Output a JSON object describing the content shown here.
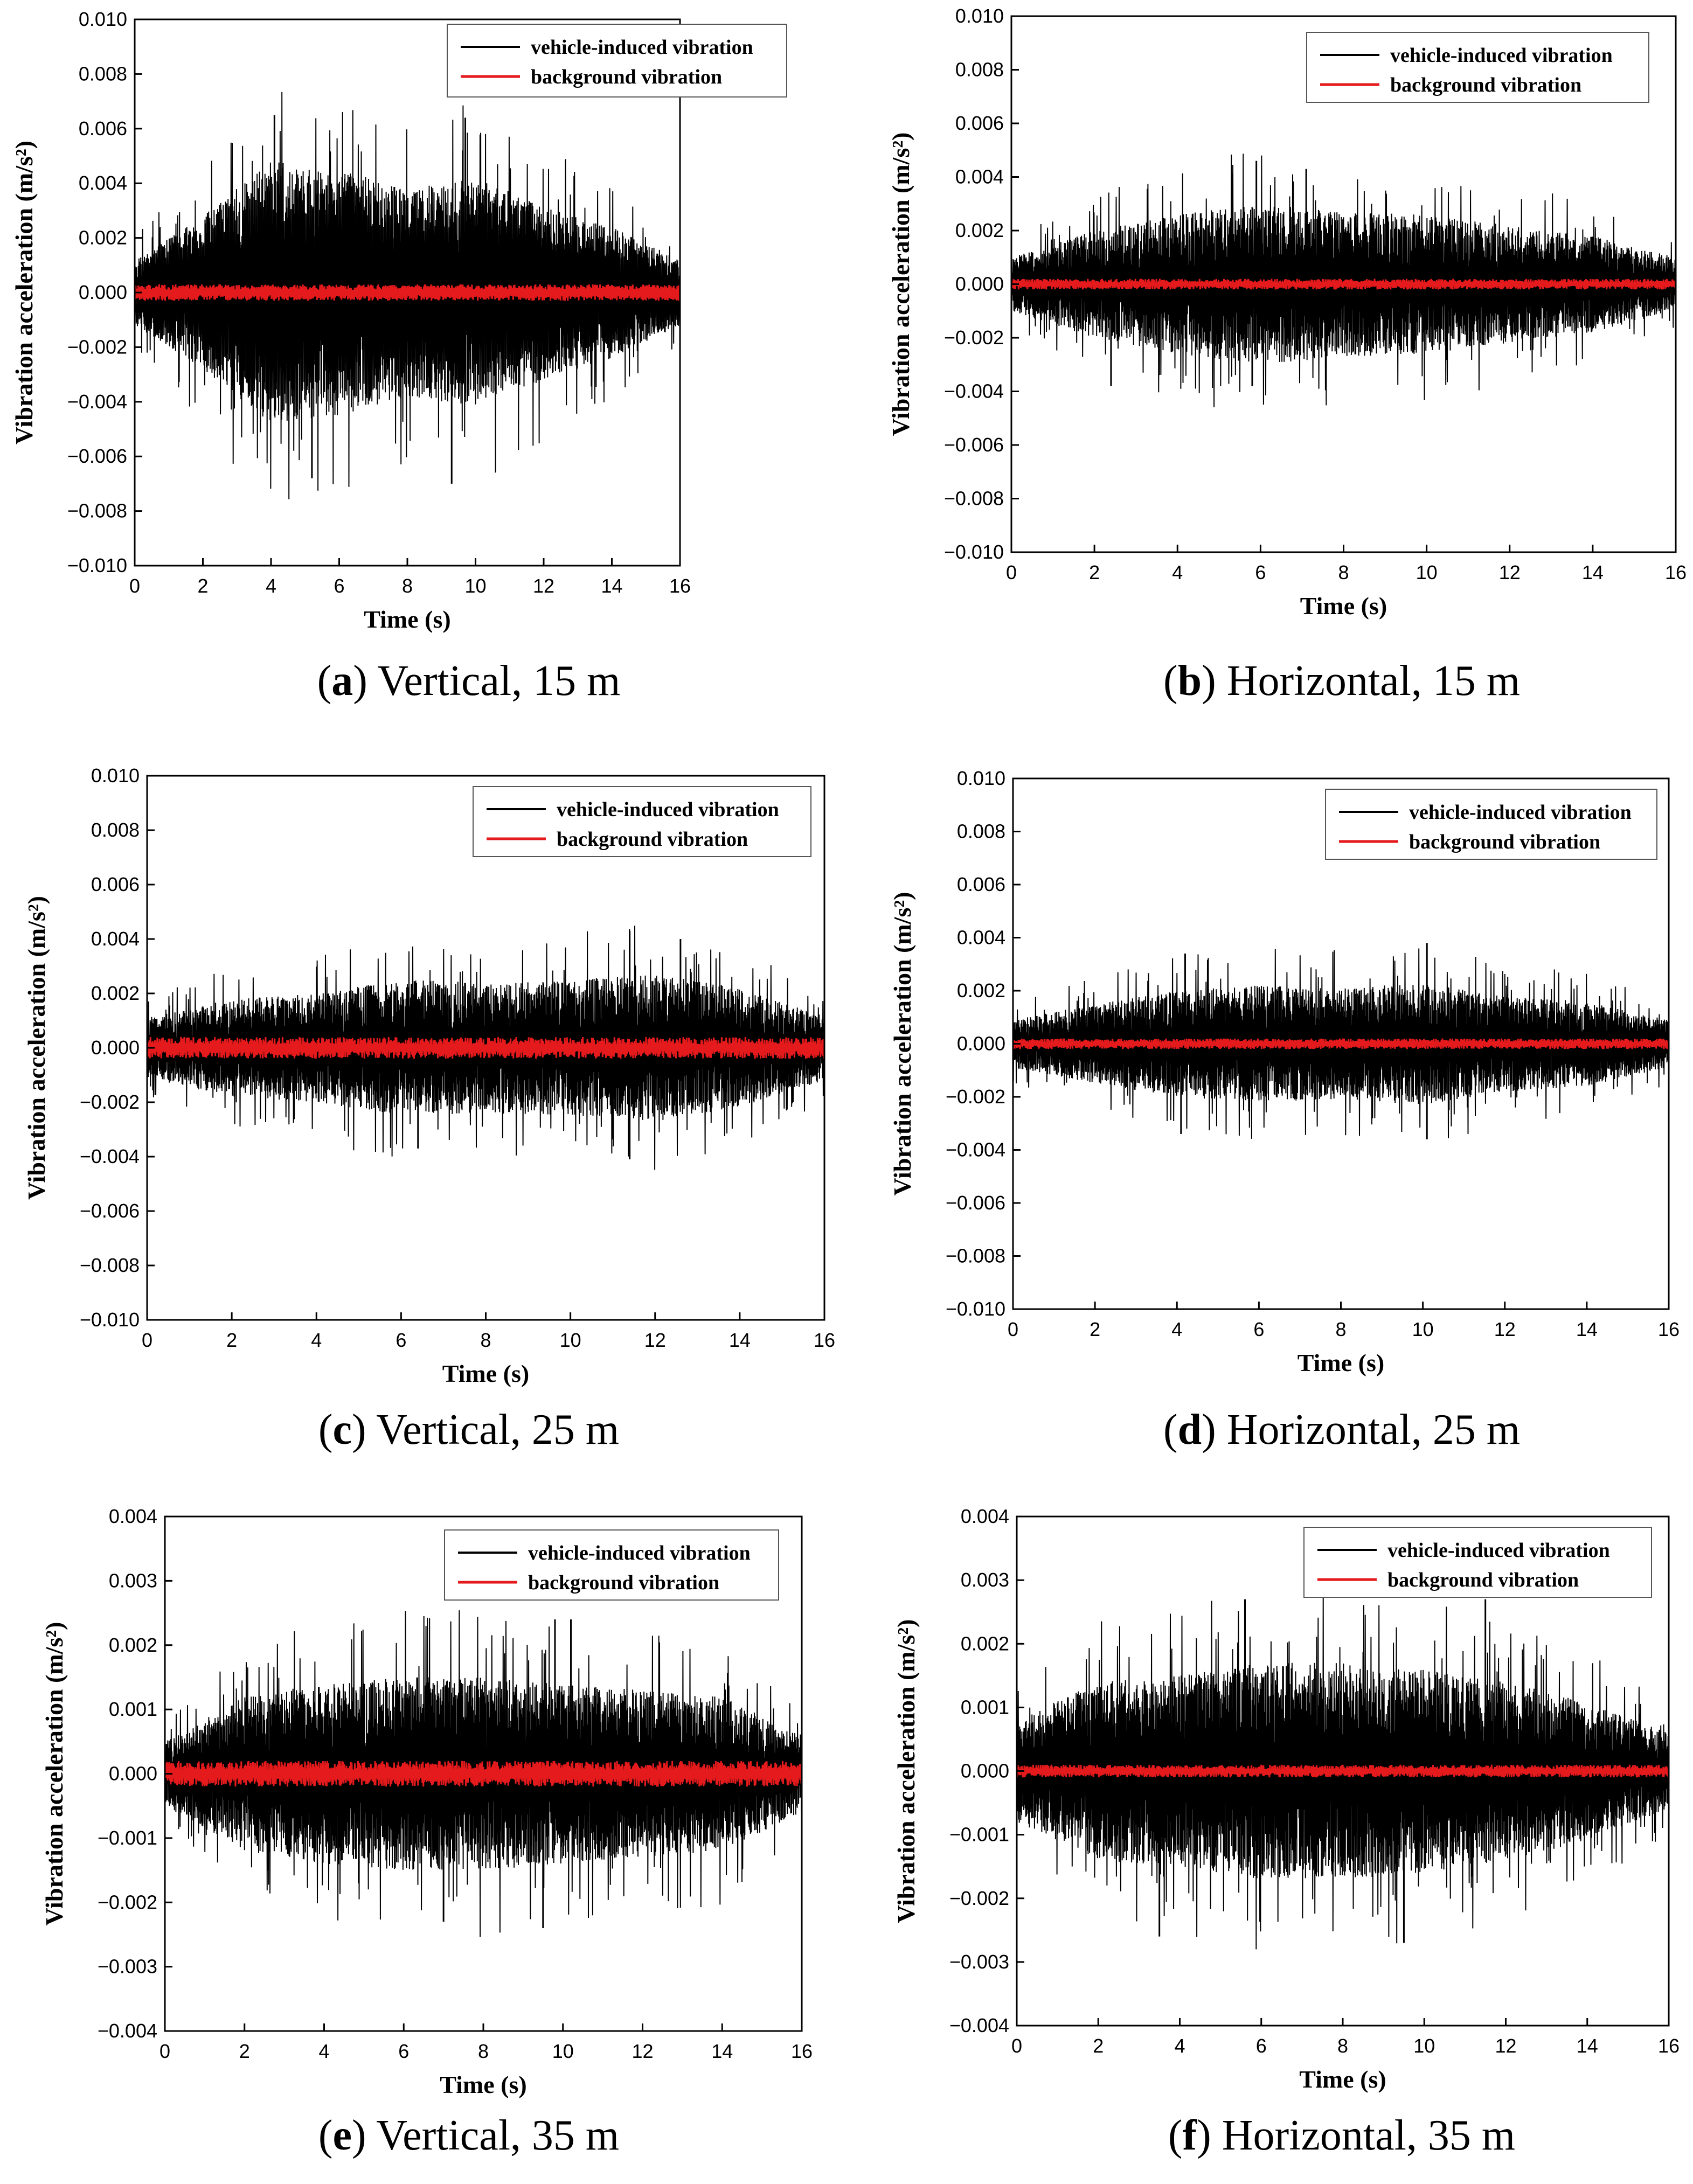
{
  "figure": {
    "colors": {
      "vehicle": "#000000",
      "background": "#e41a1c",
      "axis": "#000000"
    }
  },
  "chart_data": [
    {
      "type": "line",
      "panel": "a",
      "caption_letter": "a",
      "caption_text": "Vertical, 15 m",
      "xlabel": "Time (s)",
      "ylabel": "Vibration acceleration (m/s²)",
      "xlim": [
        0,
        16
      ],
      "ylim": [
        -0.01,
        0.01
      ],
      "xticks": [
        0,
        2,
        4,
        6,
        8,
        10,
        12,
        14,
        16
      ],
      "yticks": [
        -0.01,
        -0.008,
        -0.006,
        -0.004,
        -0.002,
        0,
        0.002,
        0.004,
        0.006,
        0.008,
        0.01
      ],
      "xtick_labels": [
        "0",
        "2",
        "4",
        "6",
        "8",
        "10",
        "12",
        "14",
        "16"
      ],
      "ytick_labels": [
        "−0.010",
        "−0.008",
        "−0.006",
        "−0.004",
        "−0.002",
        "0.000",
        "0.002",
        "0.004",
        "0.006",
        "0.008",
        "0.010"
      ],
      "legend_position": "top-right",
      "series": [
        {
          "name": "vehicle-induced vibration",
          "color": "#000000",
          "envelope": {
            "t": [
              0,
              2,
              4,
              6,
              8,
              10,
              12,
              14,
              16
            ],
            "amplitude": [
              0.0012,
              0.0028,
              0.0048,
              0.0045,
              0.0038,
              0.0042,
              0.0032,
              0.0024,
              0.0012
            ]
          },
          "peaks": [
            {
              "t": 4.1,
              "value": 0.0065
            },
            {
              "t": 9.7,
              "value": 0.0064
            },
            {
              "t": 9.3,
              "value": -0.007
            },
            {
              "t": 5.2,
              "value": -0.0068
            }
          ]
        },
        {
          "name": "background vibration",
          "color": "#e41a1c",
          "amplitude": 0.0003
        }
      ]
    },
    {
      "type": "line",
      "panel": "b",
      "caption_letter": "b",
      "caption_text": "Horizontal, 15 m",
      "xlabel": "Time (s)",
      "ylabel": "Vibration acceleration (m/s²)",
      "xlim": [
        0,
        16
      ],
      "ylim": [
        -0.01,
        0.01
      ],
      "xticks": [
        0,
        2,
        4,
        6,
        8,
        10,
        12,
        14,
        16
      ],
      "yticks": [
        -0.01,
        -0.008,
        -0.006,
        -0.004,
        -0.002,
        0,
        0.002,
        0.004,
        0.006,
        0.008,
        0.01
      ],
      "xtick_labels": [
        "0",
        "2",
        "4",
        "6",
        "8",
        "10",
        "12",
        "14",
        "16"
      ],
      "ytick_labels": [
        "−0.010",
        "−0.008",
        "−0.006",
        "−0.004",
        "−0.002",
        "0.000",
        "0.002",
        "0.004",
        "0.006",
        "0.008",
        "0.010"
      ],
      "legend_position": "top-right",
      "series": [
        {
          "name": "vehicle-induced vibration",
          "color": "#000000",
          "envelope": {
            "t": [
              0,
              2,
              4,
              6,
              8,
              10,
              12,
              14,
              16
            ],
            "amplitude": [
              0.001,
              0.002,
              0.0026,
              0.003,
              0.0027,
              0.0026,
              0.0022,
              0.0018,
              0.001
            ]
          },
          "peaks": [
            {
              "t": 5.9,
              "value": 0.0046
            },
            {
              "t": 7.1,
              "value": 0.0043
            },
            {
              "t": 5.8,
              "value": -0.0038
            },
            {
              "t": 2.4,
              "value": -0.0038
            }
          ]
        },
        {
          "name": "background vibration",
          "color": "#e41a1c",
          "amplitude": 0.0002
        }
      ]
    },
    {
      "type": "line",
      "panel": "c",
      "caption_letter": "c",
      "caption_text": "Vertical, 25 m",
      "xlabel": "Time (s)",
      "ylabel": "Vibration acceleration (m/s²)",
      "xlim": [
        0,
        16
      ],
      "ylim": [
        -0.01,
        0.01
      ],
      "xticks": [
        0,
        2,
        4,
        6,
        8,
        10,
        12,
        14,
        16
      ],
      "yticks": [
        -0.01,
        -0.008,
        -0.006,
        -0.004,
        -0.002,
        0,
        0.002,
        0.004,
        0.006,
        0.008,
        0.01
      ],
      "xtick_labels": [
        "0",
        "2",
        "4",
        "6",
        "8",
        "10",
        "12",
        "14",
        "16"
      ],
      "ytick_labels": [
        "−0.010",
        "−0.008",
        "−0.006",
        "−0.004",
        "−0.002",
        "0.000",
        "0.002",
        "0.004",
        "0.006",
        "0.008",
        "0.010"
      ],
      "legend_position": "top-right",
      "series": [
        {
          "name": "vehicle-induced vibration",
          "color": "#000000",
          "envelope": {
            "t": [
              0,
              2,
              4,
              6,
              8,
              10,
              12,
              14,
              16
            ],
            "amplitude": [
              0.0011,
              0.0018,
              0.002,
              0.0025,
              0.0024,
              0.0025,
              0.0027,
              0.0022,
              0.0012
            ]
          },
          "peaks": [
            {
              "t": 11.4,
              "value": 0.0043
            },
            {
              "t": 12.6,
              "value": 0.004
            },
            {
              "t": 11.4,
              "value": -0.0041
            },
            {
              "t": 6.4,
              "value": -0.0037
            }
          ]
        },
        {
          "name": "background vibration",
          "color": "#e41a1c",
          "amplitude": 0.0004
        }
      ]
    },
    {
      "type": "line",
      "panel": "d",
      "caption_letter": "d",
      "caption_text": "Horizontal, 25 m",
      "xlabel": "Time (s)",
      "ylabel": "Vibration acceleration (m/s²)",
      "xlim": [
        0,
        16
      ],
      "ylim": [
        -0.01,
        0.01
      ],
      "xticks": [
        0,
        2,
        4,
        6,
        8,
        10,
        12,
        14,
        16
      ],
      "yticks": [
        -0.01,
        -0.008,
        -0.006,
        -0.004,
        -0.002,
        0,
        0.002,
        0.004,
        0.006,
        0.008,
        0.01
      ],
      "xtick_labels": [
        "0",
        "2",
        "4",
        "6",
        "8",
        "10",
        "12",
        "14",
        "16"
      ],
      "ytick_labels": [
        "−0.010",
        "−0.008",
        "−0.006",
        "−0.004",
        "−0.002",
        "0.000",
        "0.002",
        "0.004",
        "0.006",
        "0.008",
        "0.010"
      ],
      "legend_position": "top-right",
      "series": [
        {
          "name": "vehicle-induced vibration",
          "color": "#000000",
          "envelope": {
            "t": [
              0,
              2,
              4,
              6,
              8,
              10,
              12,
              14,
              16
            ],
            "amplitude": [
              0.0009,
              0.0015,
              0.002,
              0.0022,
              0.0021,
              0.0023,
              0.0018,
              0.0016,
              0.0009
            ]
          },
          "peaks": [
            {
              "t": 10.1,
              "value": 0.0038
            },
            {
              "t": 4.2,
              "value": 0.0034
            },
            {
              "t": 10.1,
              "value": -0.0036
            },
            {
              "t": 4.1,
              "value": -0.0034
            }
          ]
        },
        {
          "name": "background vibration",
          "color": "#e41a1c",
          "amplitude": 0.0002
        }
      ]
    },
    {
      "type": "line",
      "panel": "e",
      "caption_letter": "e",
      "caption_text": "Vertical, 35 m",
      "xlabel": "Time (s)",
      "ylabel": "Vibration acceleration (m/s²)",
      "xlim": [
        0,
        16
      ],
      "ylim": [
        -0.004,
        0.004
      ],
      "xticks": [
        0,
        2,
        4,
        6,
        8,
        10,
        12,
        14,
        16
      ],
      "yticks": [
        -0.004,
        -0.003,
        -0.002,
        -0.001,
        0,
        0.001,
        0.002,
        0.003,
        0.004
      ],
      "xtick_labels": [
        "0",
        "2",
        "4",
        "6",
        "8",
        "10",
        "12",
        "14",
        "16"
      ],
      "ytick_labels": [
        "−0.004",
        "−0.003",
        "−0.002",
        "−0.001",
        "0.000",
        "0.001",
        "0.002",
        "0.003",
        "0.004"
      ],
      "legend_position": "top-right",
      "series": [
        {
          "name": "vehicle-induced vibration",
          "color": "#000000",
          "envelope": {
            "t": [
              0,
              2,
              4,
              6,
              8,
              10,
              12,
              14,
              16
            ],
            "amplitude": [
              0.0005,
              0.0012,
              0.0014,
              0.0015,
              0.0015,
              0.0014,
              0.0013,
              0.0012,
              0.0006
            ]
          },
          "peaks": [
            {
              "t": 9.8,
              "value": 0.0024
            },
            {
              "t": 10.2,
              "value": 0.0024
            },
            {
              "t": 9.5,
              "value": -0.0024
            },
            {
              "t": 7.0,
              "value": -0.0023
            }
          ]
        },
        {
          "name": "background vibration",
          "color": "#e41a1c",
          "amplitude": 0.0002
        }
      ]
    },
    {
      "type": "line",
      "panel": "f",
      "caption_letter": "f",
      "caption_text": "Horizontal, 35 m",
      "xlabel": "Time (s)",
      "ylabel": "Vibration acceleration (m/s²)",
      "xlim": [
        0,
        16
      ],
      "ylim": [
        -0.004,
        0.004
      ],
      "xticks": [
        0,
        2,
        4,
        6,
        8,
        10,
        12,
        14,
        16
      ],
      "yticks": [
        -0.004,
        -0.003,
        -0.002,
        -0.001,
        0,
        0.001,
        0.002,
        0.003,
        0.004
      ],
      "xtick_labels": [
        "0",
        "2",
        "4",
        "6",
        "8",
        "10",
        "12",
        "14",
        "16"
      ],
      "ytick_labels": [
        "−0.004",
        "−0.003",
        "−0.002",
        "−0.001",
        "0.000",
        "0.001",
        "0.002",
        "0.003",
        "0.004"
      ],
      "legend_position": "top-right",
      "series": [
        {
          "name": "vehicle-induced vibration",
          "color": "#000000",
          "envelope": {
            "t": [
              0,
              2,
              4,
              6,
              8,
              10,
              12,
              14,
              16
            ],
            "amplitude": [
              0.0008,
              0.0014,
              0.0015,
              0.0017,
              0.0017,
              0.0016,
              0.0014,
              0.0011,
              0.0006
            ]
          },
          "peaks": [
            {
              "t": 11.5,
              "value": 0.0027
            },
            {
              "t": 5.6,
              "value": 0.0027
            },
            {
              "t": 9.5,
              "value": -0.0027
            },
            {
              "t": 3.5,
              "value": -0.0026
            }
          ]
        },
        {
          "name": "background vibration",
          "color": "#e41a1c",
          "amplitude": 0.0001
        }
      ]
    }
  ]
}
